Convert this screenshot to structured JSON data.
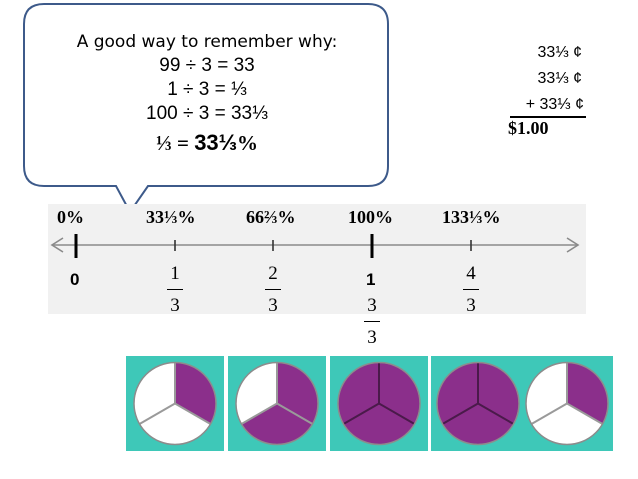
{
  "bubble": {
    "title": "A good way to remember why:",
    "line1": "99 ÷ 3 = 33",
    "line2": "1 ÷ 3 = ⅓",
    "line3": "100 ÷ 3 = 33⅓",
    "line4_frac": "⅓ = ",
    "line4_value": "33⅓",
    "line4_unit": "%"
  },
  "sum": {
    "line1": "33⅓ ¢",
    "line2": "33⅓ ¢",
    "line3": "+ 33⅓ ¢",
    "total": "$1.00"
  },
  "number_line": {
    "percents": [
      "0%",
      "33⅓%",
      "66⅔%",
      "100%",
      "133⅓%"
    ],
    "whole_labels": [
      "0",
      "1"
    ],
    "fractions": [
      {
        "num": "1",
        "den": "3"
      },
      {
        "num": "2",
        "den": "3"
      },
      {
        "num": "3",
        "den": "3"
      },
      {
        "num": "4",
        "den": "3"
      }
    ]
  },
  "pies": {
    "purple_color": "#8b2f8b",
    "white_color": "#ffffff",
    "panel_color": "#3ec8b8",
    "filled_thirds": [
      1,
      2,
      3,
      4
    ]
  }
}
